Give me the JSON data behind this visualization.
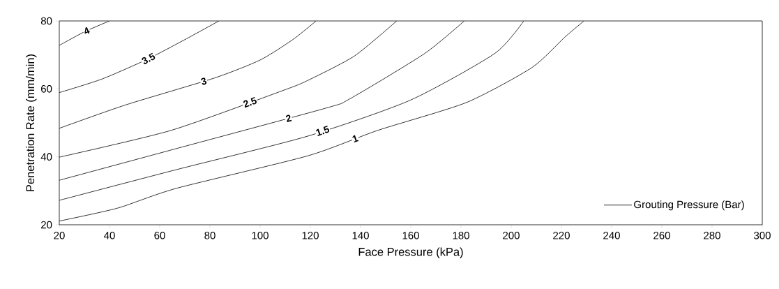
{
  "chart_data": {
    "type": "line",
    "xlabel": "Face Pressure (kPa)",
    "ylabel": "Penetration Rate (mm/min)",
    "legend_title": "Grouting Pressure (Bar)",
    "xlim": [
      20,
      300
    ],
    "xticks": [
      20,
      40,
      60,
      80,
      100,
      120,
      140,
      160,
      180,
      200,
      220,
      240,
      260,
      280,
      300
    ],
    "ylim": [
      20,
      80
    ],
    "yticks": [
      20,
      40,
      60,
      80
    ],
    "grid": false,
    "marker": "none",
    "line_style": "solid",
    "series": [
      {
        "name": "4",
        "color": "#000000",
        "x": [
          20,
          30,
          40
        ],
        "values": [
          72.8,
          76.8,
          80
        ]
      },
      {
        "name": "3.5",
        "color": "#000000",
        "x": [
          20,
          37,
          55,
          70,
          83.6
        ],
        "values": [
          58.9,
          62.9,
          68.7,
          74.5,
          80
        ]
      },
      {
        "name": "3",
        "color": "#000000",
        "x": [
          20,
          46.5,
          81.8,
          100,
          113,
          122.3
        ],
        "values": [
          48.4,
          55.3,
          63.2,
          68.5,
          74.5,
          80
        ]
      },
      {
        "name": "2.5",
        "color": "#000000",
        "x": [
          20,
          64.6,
          109,
          119,
          137.6,
          154.4
        ],
        "values": [
          39.9,
          47.8,
          59.5,
          62.5,
          69.7,
          80
        ]
      },
      {
        "name": "2",
        "color": "#000000",
        "x": [
          20,
          66.5,
          126,
          135.8,
          165.5,
          181.3
        ],
        "values": [
          33.1,
          42.4,
          54.3,
          57.1,
          70.4,
          80
        ]
      },
      {
        "name": "1.5",
        "color": "#000000",
        "x": [
          20,
          66.5,
          119,
          159.9,
          193.4,
          205
        ],
        "values": [
          27.2,
          36.2,
          46.1,
          56.7,
          70.4,
          80
        ]
      },
      {
        "name": "1",
        "color": "#000000",
        "x": [
          20,
          43.2,
          66.5,
          119,
          146.9,
          182.2,
          208.3,
          221.3,
          229
        ],
        "values": [
          21.1,
          24.9,
          30.7,
          40.3,
          47.8,
          56.0,
          66.3,
          75.2,
          80
        ]
      }
    ]
  }
}
